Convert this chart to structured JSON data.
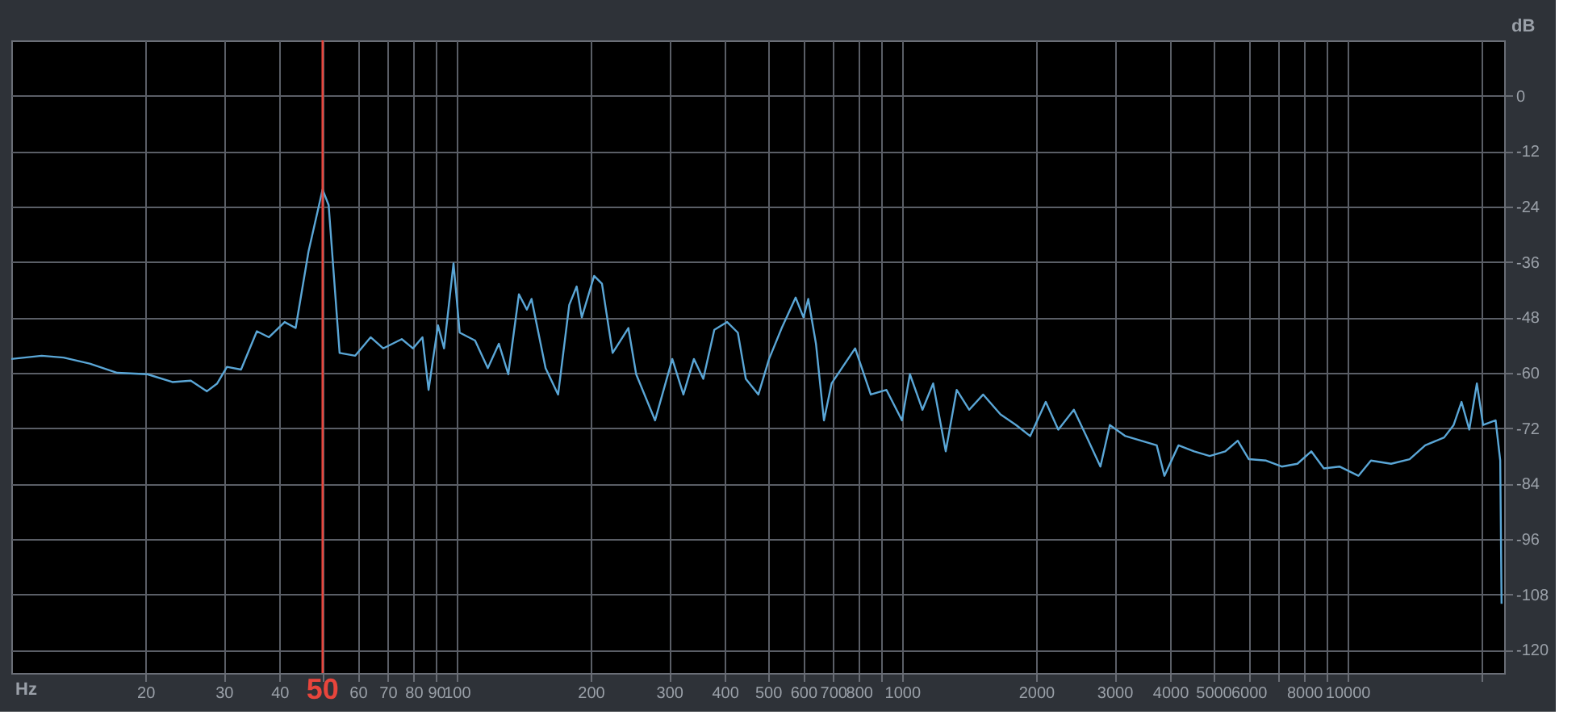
{
  "chart_data": {
    "type": "line",
    "xlabel": "Hz",
    "ylabel": "dB",
    "log": "x",
    "grid": true,
    "marker": "none",
    "line_style": "solid",
    "xlim": [
      10,
      22500
    ],
    "ylim": [
      -125,
      12
    ],
    "xticks": [
      20,
      30,
      40,
      {
        "value": 50,
        "label": null
      },
      60,
      70,
      80,
      90,
      100,
      200,
      300,
      400,
      500,
      600,
      700,
      800,
      {
        "value": 900,
        "label": null
      },
      1000,
      2000,
      3000,
      4000,
      5000,
      6000,
      {
        "value": 7000,
        "label": null
      },
      8000,
      {
        "value": 9000,
        "label": null
      },
      10000,
      {
        "value": 20000,
        "label": null
      }
    ],
    "yticks": [
      0,
      -12,
      -24,
      -36,
      -48,
      -60,
      -72,
      -84,
      -96,
      -108,
      -120
    ],
    "ref_lines": [
      {
        "axis": "x",
        "value": 50,
        "label": "50",
        "color": "#e8453c"
      }
    ],
    "series": [
      {
        "color": "#5aa6d6",
        "x": [
          10,
          11.7,
          13.1,
          15,
          17.3,
          20.2,
          23,
          25.3,
          27.5,
          29,
          30.5,
          32.8,
          35.6,
          37.9,
          41.1,
          43.5,
          46.5,
          50,
          51.6,
          54.6,
          59.2,
          64.1,
          68.4,
          75.3,
          79.8,
          83.8,
          86.5,
          90.8,
          93.7,
          98.4,
          101.6,
          110,
          117.5,
          124.4,
          130.6,
          138,
          143.8,
          147.3,
          158.4,
          169,
          179,
          186,
          191,
          203.6,
          212,
          224,
          243,
          253,
          279,
          305,
          323,
          341,
          358,
          379,
          405,
          428,
          446,
          476,
          503,
          537,
          577,
          601,
          616,
          641,
          668,
          695,
          785,
          851,
          923,
          1000,
          1042,
          1112,
          1175,
          1254,
          1327,
          1416,
          1522,
          1664,
          1804,
          1940,
          2103,
          2244,
          2432,
          2594,
          2790,
          2929,
          3175,
          3443,
          3733,
          3884,
          4178,
          4529,
          4909,
          5321,
          5675,
          6010,
          6572,
          7125,
          7725,
          8301,
          8858,
          9604,
          10590,
          11300,
          12540,
          13800,
          14960,
          16500,
          17330,
          18050,
          18790,
          19540,
          20180,
          21530,
          22050,
          22200
        ],
        "values": [
          -57,
          -56.3,
          -56.7,
          -58,
          -60,
          -60.3,
          -62,
          -61.7,
          -64,
          -62.3,
          -58.7,
          -59.3,
          -51,
          -52.3,
          -49,
          -50.3,
          -33.7,
          -20.3,
          -23.7,
          -55.7,
          -56.3,
          -52.3,
          -54.7,
          -52.7,
          -54.7,
          -52.3,
          -63.7,
          -49.7,
          -54.7,
          -36.3,
          -51.3,
          -53,
          -59,
          -53.7,
          -60.3,
          -43,
          -46.3,
          -44,
          -59,
          -64.7,
          -45.3,
          -41.3,
          -48,
          -39,
          -40.7,
          -55.7,
          -50.3,
          -60.3,
          -70.3,
          -57,
          -64.7,
          -57,
          -61.3,
          -50.7,
          -49,
          -51.3,
          -61.3,
          -64.7,
          -57,
          -50.3,
          -43.7,
          -48,
          -44,
          -53.7,
          -70.3,
          -62.3,
          -54.7,
          -64.7,
          -63.7,
          -70.3,
          -60.3,
          -68,
          -62.3,
          -77,
          -63.7,
          -68,
          -64.7,
          -69,
          -71.3,
          -73.7,
          -66.3,
          -72.3,
          -68,
          -73.7,
          -80.3,
          -71.3,
          -73.7,
          -74.7,
          -75.7,
          -82.3,
          -75.7,
          -77,
          -78,
          -77,
          -74.7,
          -78.7,
          -79,
          -80.3,
          -79.7,
          -77,
          -80.7,
          -80.3,
          -82.3,
          -79,
          -79.7,
          -78.7,
          -75.7,
          -74,
          -71.3,
          -66.3,
          -72.3,
          -62.3,
          -71.3,
          -70.3,
          -79,
          -110
        ]
      }
    ]
  }
}
